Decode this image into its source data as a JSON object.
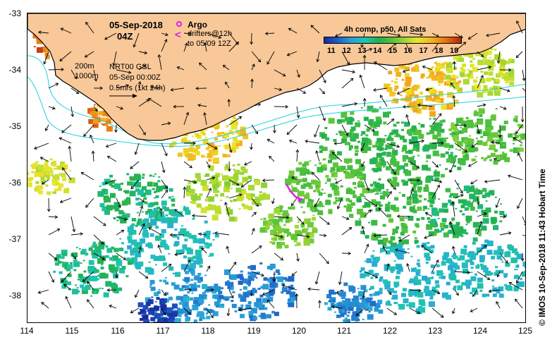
{
  "header": {
    "date": "05-Sep-2018",
    "time": "04Z"
  },
  "legend": {
    "argo_label": "Argo",
    "drifters_label": "drifters@12h",
    "drifters_period": "to 05/09 12Z",
    "argo_color": "#e020e0",
    "drifter_color": "#e020e0",
    "argo_icon": "circle-icon",
    "drifter_icon": "chevron-left-icon"
  },
  "contours": {
    "label_200": "200m",
    "label_1000": "1000m",
    "color": "#20d0e0"
  },
  "altimetry": {
    "product": "NRT00 GSL",
    "date": "05-Sep 00:00Z",
    "scale_label": "0.5m/s (1kt 24h)"
  },
  "colorbar": {
    "title": "4h comp, p50, All Sats",
    "labels": [
      "11",
      "12",
      "13",
      "14",
      "15",
      "16",
      "17",
      "18",
      "19"
    ],
    "min": 10.5,
    "max": 19.5
  },
  "axes": {
    "x_labels": [
      "114",
      "115",
      "116",
      "117",
      "118",
      "119",
      "120",
      "121",
      "122",
      "123",
      "124",
      "125"
    ],
    "y_labels": [
      "-33",
      "-34",
      "-35",
      "-36",
      "-37",
      "-38"
    ],
    "lon_range": [
      114,
      125
    ],
    "lat_range": [
      -33,
      -38.5
    ]
  },
  "colors": {
    "land": "#f8c898",
    "coast": "#000000",
    "arrows": "#000000"
  },
  "credit": "© IMOS 10-Sep-2018 11:43 Hobart Time"
}
